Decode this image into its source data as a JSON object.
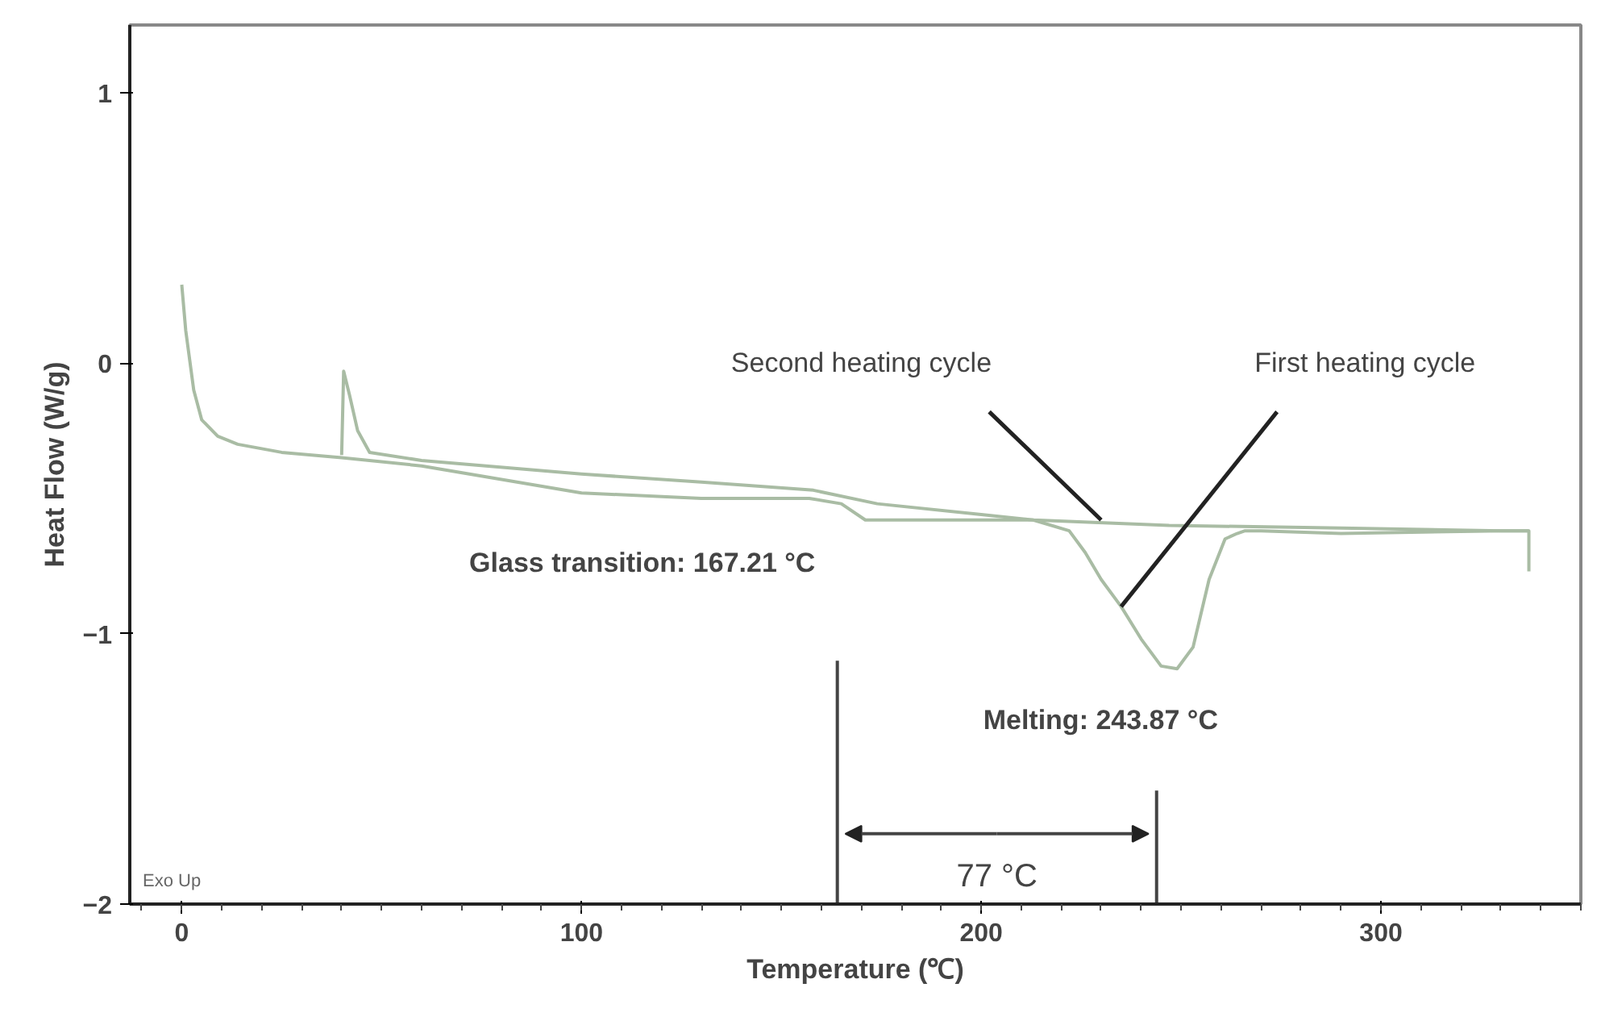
{
  "chart_data": {
    "type": "line",
    "xlabel": "Temperature (℃)",
    "ylabel": "Heat Flow (W/g)",
    "xlim": [
      -13,
      350
    ],
    "ylim": [
      -2,
      1.25
    ],
    "xticks": [
      0,
      100,
      200,
      300
    ],
    "yticks": [
      1,
      0,
      -1,
      -2
    ],
    "grid": false,
    "ref_lines": [
      {
        "axis": "x",
        "value": 164,
        "color": "#444444"
      },
      {
        "axis": "x",
        "value": 243.87,
        "color": "#444444"
      }
    ],
    "marker": "none",
    "line_style": "solid",
    "series": [
      {
        "color": "#a9bca4",
        "x": [
          0,
          1,
          3,
          5,
          9,
          14,
          25,
          40,
          60,
          100,
          130,
          157,
          165,
          171,
          190,
          213,
          222,
          226,
          230,
          235,
          240,
          245,
          249,
          253,
          257,
          261,
          264,
          266,
          270,
          290,
          330,
          337,
          337
        ],
        "values": [
          0.29,
          0.12,
          -0.1,
          -0.21,
          -0.27,
          -0.3,
          -0.33,
          -0.35,
          -0.38,
          -0.48,
          -0.5,
          -0.5,
          -0.52,
          -0.58,
          -0.58,
          -0.58,
          -0.62,
          -0.7,
          -0.8,
          -0.9,
          -1.02,
          -1.12,
          -1.13,
          -1.05,
          -0.8,
          -0.65,
          -0.63,
          -0.62,
          -0.62,
          -0.63,
          -0.62,
          -0.62,
          -0.77
        ]
      },
      {
        "color": "#a9bca4",
        "x": [
          40,
          40.5,
          42,
          44,
          47,
          60,
          100,
          130,
          158,
          174,
          200,
          213,
          247,
          290,
          330,
          337
        ],
        "values": [
          -0.34,
          -0.03,
          -0.12,
          -0.25,
          -0.33,
          -0.36,
          -0.41,
          -0.44,
          -0.47,
          -0.52,
          -0.56,
          -0.58,
          -0.6,
          -0.61,
          -0.62,
          -0.62
        ]
      }
    ],
    "annotations": [
      {
        "text": "Second heating cycle",
        "x": 230,
        "y": -0.58
      },
      {
        "text": "First heating cycle",
        "x": 235,
        "y": -0.9
      },
      {
        "text": "Glass transition: 167.21 °C",
        "x": 167.21,
        "y": -0.52
      },
      {
        "text": "Melting: 243.87 °C",
        "x": 243.87,
        "y": -1.13
      },
      "77 °C",
      "Exo Up"
    ]
  }
}
